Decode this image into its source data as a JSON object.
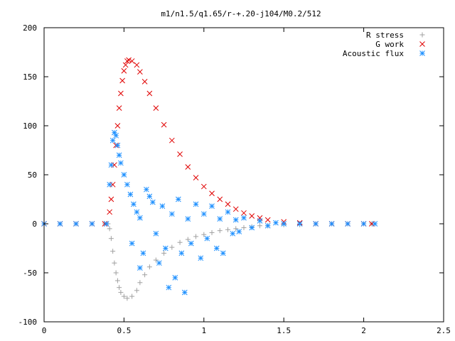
{
  "chart_data": {
    "type": "scatter",
    "title": "m1/n1.5/q1.65/r-+.20-j104/M0.2/512",
    "xlabel": "",
    "ylabel": "",
    "xlim": [
      0,
      2.5
    ],
    "ylim": [
      -100,
      200
    ],
    "x_ticks": [
      "0",
      "0.5",
      "1",
      "1.5",
      "2",
      "2.5"
    ],
    "y_ticks": [
      "200",
      "150",
      "100",
      "50",
      "0",
      "-50",
      "-100"
    ],
    "grid": false,
    "legend_position": "top-right",
    "series": [
      {
        "name": "R stress",
        "marker": "plus",
        "color": "#a0a0a0",
        "points": [
          [
            0.0,
            0
          ],
          [
            0.1,
            0
          ],
          [
            0.2,
            0
          ],
          [
            0.3,
            0
          ],
          [
            0.38,
            0
          ],
          [
            0.4,
            0
          ],
          [
            0.41,
            -5
          ],
          [
            0.42,
            -15
          ],
          [
            0.43,
            -28
          ],
          [
            0.44,
            -40
          ],
          [
            0.45,
            -50
          ],
          [
            0.46,
            -58
          ],
          [
            0.47,
            -65
          ],
          [
            0.48,
            -70
          ],
          [
            0.5,
            -74
          ],
          [
            0.52,
            -76
          ],
          [
            0.55,
            -74
          ],
          [
            0.58,
            -68
          ],
          [
            0.6,
            -60
          ],
          [
            0.63,
            -52
          ],
          [
            0.66,
            -44
          ],
          [
            0.7,
            -37
          ],
          [
            0.75,
            -30
          ],
          [
            0.8,
            -24
          ],
          [
            0.85,
            -19
          ],
          [
            0.9,
            -16
          ],
          [
            0.95,
            -13
          ],
          [
            1.0,
            -11
          ],
          [
            1.05,
            -9
          ],
          [
            1.1,
            -7
          ],
          [
            1.15,
            -6
          ],
          [
            1.2,
            -5
          ],
          [
            1.25,
            -4
          ],
          [
            1.3,
            -3
          ],
          [
            1.35,
            -2
          ],
          [
            1.4,
            -2
          ],
          [
            1.5,
            -1
          ],
          [
            1.6,
            -1
          ],
          [
            1.7,
            0
          ],
          [
            1.8,
            0
          ],
          [
            1.9,
            0
          ],
          [
            2.0,
            0
          ],
          [
            2.05,
            0
          ]
        ]
      },
      {
        "name": "G work",
        "marker": "cross",
        "color": "#e00000",
        "points": [
          [
            0.0,
            0
          ],
          [
            0.1,
            0
          ],
          [
            0.2,
            0
          ],
          [
            0.3,
            0
          ],
          [
            0.38,
            0
          ],
          [
            0.41,
            12
          ],
          [
            0.42,
            25
          ],
          [
            0.43,
            40
          ],
          [
            0.44,
            60
          ],
          [
            0.45,
            80
          ],
          [
            0.46,
            100
          ],
          [
            0.47,
            118
          ],
          [
            0.48,
            133
          ],
          [
            0.49,
            146
          ],
          [
            0.5,
            156
          ],
          [
            0.51,
            162
          ],
          [
            0.52,
            166
          ],
          [
            0.53,
            167
          ],
          [
            0.55,
            166
          ],
          [
            0.58,
            162
          ],
          [
            0.6,
            155
          ],
          [
            0.63,
            145
          ],
          [
            0.66,
            133
          ],
          [
            0.7,
            118
          ],
          [
            0.75,
            101
          ],
          [
            0.8,
            85
          ],
          [
            0.85,
            71
          ],
          [
            0.9,
            58
          ],
          [
            0.95,
            47
          ],
          [
            1.0,
            38
          ],
          [
            1.05,
            31
          ],
          [
            1.1,
            25
          ],
          [
            1.15,
            20
          ],
          [
            1.2,
            15
          ],
          [
            1.25,
            11
          ],
          [
            1.3,
            8
          ],
          [
            1.35,
            6
          ],
          [
            1.4,
            4
          ],
          [
            1.5,
            2
          ],
          [
            1.6,
            1
          ],
          [
            1.7,
            0
          ],
          [
            1.8,
            0
          ],
          [
            1.9,
            0
          ],
          [
            2.0,
            0
          ],
          [
            2.05,
            0
          ]
        ]
      },
      {
        "name": "Acoustic flux",
        "marker": "star",
        "color": "#1e90ff",
        "points": [
          [
            0.0,
            0
          ],
          [
            0.1,
            0
          ],
          [
            0.2,
            0
          ],
          [
            0.3,
            0
          ],
          [
            0.39,
            0
          ],
          [
            0.41,
            40
          ],
          [
            0.42,
            60
          ],
          [
            0.43,
            85
          ],
          [
            0.44,
            93
          ],
          [
            0.45,
            90
          ],
          [
            0.46,
            80
          ],
          [
            0.47,
            70
          ],
          [
            0.48,
            62
          ],
          [
            0.5,
            50
          ],
          [
            0.52,
            40
          ],
          [
            0.54,
            30
          ],
          [
            0.56,
            20
          ],
          [
            0.58,
            12
          ],
          [
            0.6,
            6
          ],
          [
            0.55,
            -20
          ],
          [
            0.6,
            -45
          ],
          [
            0.62,
            -30
          ],
          [
            0.64,
            35
          ],
          [
            0.66,
            28
          ],
          [
            0.68,
            22
          ],
          [
            0.7,
            -10
          ],
          [
            0.72,
            -40
          ],
          [
            0.74,
            18
          ],
          [
            0.76,
            -25
          ],
          [
            0.78,
            -65
          ],
          [
            0.8,
            10
          ],
          [
            0.82,
            -55
          ],
          [
            0.84,
            25
          ],
          [
            0.86,
            -30
          ],
          [
            0.88,
            -70
          ],
          [
            0.9,
            5
          ],
          [
            0.92,
            -20
          ],
          [
            0.95,
            20
          ],
          [
            0.98,
            -35
          ],
          [
            1.0,
            10
          ],
          [
            1.02,
            -15
          ],
          [
            1.05,
            18
          ],
          [
            1.08,
            -25
          ],
          [
            1.1,
            5
          ],
          [
            1.12,
            -30
          ],
          [
            1.15,
            12
          ],
          [
            1.18,
            -10
          ],
          [
            1.2,
            4
          ],
          [
            1.22,
            -8
          ],
          [
            1.25,
            6
          ],
          [
            1.3,
            -4
          ],
          [
            1.35,
            3
          ],
          [
            1.4,
            -2
          ],
          [
            1.45,
            1
          ],
          [
            1.5,
            0
          ],
          [
            1.6,
            0
          ],
          [
            1.7,
            0
          ],
          [
            1.8,
            0
          ],
          [
            1.9,
            0
          ],
          [
            2.0,
            0
          ],
          [
            2.07,
            0
          ]
        ]
      }
    ]
  }
}
